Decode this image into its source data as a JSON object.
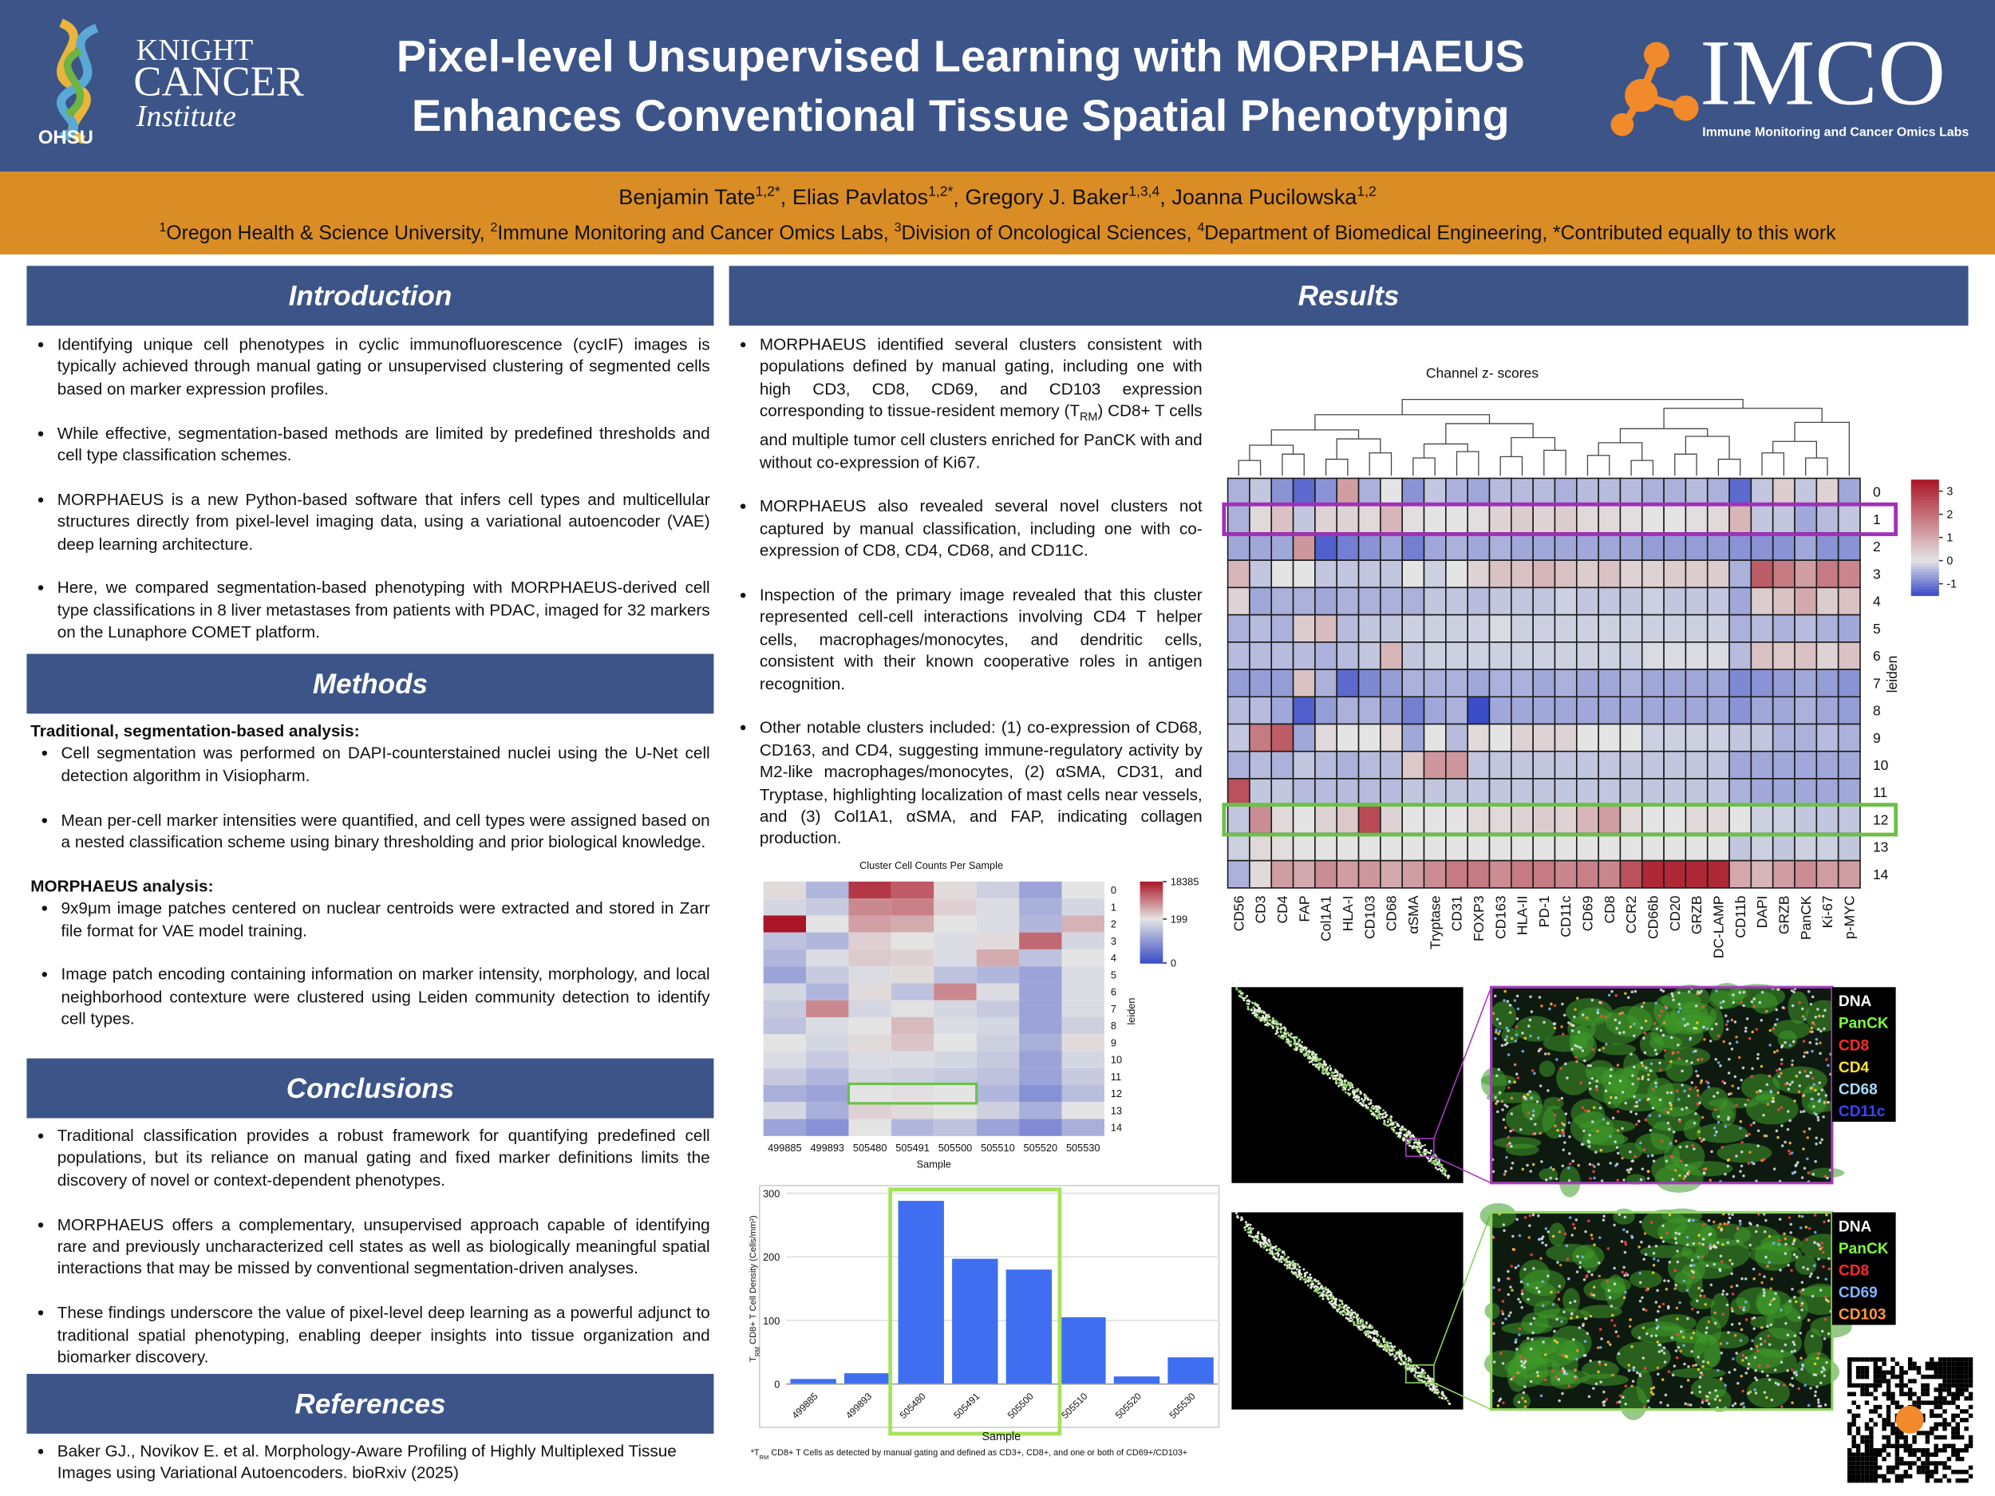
{
  "header": {
    "title": [
      "Pixel-level Unsupervised Learning with MORPHAEUS",
      "Enhances Conventional Tissue Spatial Phenotyping"
    ],
    "logo_left": {
      "line1": "KNIGHT",
      "line2": "CANCER",
      "line3": "Institute",
      "org": "OHSU"
    },
    "logo_right": {
      "name": "IMCO",
      "subtitle": "Immune Monitoring and Cancer Omics Labs"
    }
  },
  "authors": [
    [
      "Benjamin Tate",
      "1,2*"
    ],
    [
      ", Elias Pavlatos",
      "1,2*"
    ],
    [
      ", Gregory J. Baker",
      "1,3,4"
    ],
    [
      ", Joanna Pucilowska",
      "1,2"
    ]
  ],
  "affiliations": [
    {
      "sup": "1",
      "text": "Oregon Health & Science University, "
    },
    {
      "sup": "2",
      "text": "Immune Monitoring and Cancer Omics Labs, "
    },
    {
      "sup": "3",
      "text": "Division of Oncological Sciences, "
    },
    {
      "sup": "4",
      "text": "Department of Biomedical Engineering, "
    },
    {
      "text": "*Contributed equally to this work"
    }
  ],
  "introduction": {
    "heading": "Introduction",
    "bullets": [
      "Identifying unique cell phenotypes in cyclic immunofluorescence (cycIF) images is typically achieved through manual gating or unsupervised clustering of segmented cells based on marker expression profiles.",
      "While effective, segmentation-based methods are limited by predefined thresholds and cell type classification schemes.",
      "MORPHAEUS is a new Python-based software that infers cell types and multicellular structures directly from pixel-level imaging data, using a variational autoencoder (VAE) deep learning architecture.",
      "Here, we compared segmentation-based phenotyping with MORPHAEUS-derived cell type classifications in 8 liver metastases from patients with PDAC, imaged for 32 markers on the Lunaphore COMET platform."
    ]
  },
  "methods": {
    "heading": "Methods",
    "groups": [
      {
        "title": "Traditional, segmentation-based analysis:",
        "bullets": [
          "Cell segmentation was performed on DAPI-counterstained nuclei using the U-Net cell detection algorithm in Visiopharm.",
          "Mean per-cell marker intensities were quantified, and cell types were assigned based on a nested classification scheme using binary thresholding and prior biological knowledge."
        ]
      },
      {
        "title": "MORPHAEUS analysis:",
        "bullets": [
          "9x9μm image patches centered on nuclear centroids were extracted and stored in Zarr file format for VAE model training.",
          "Image patch encoding containing information on marker intensity, morphology, and local neighborhood contexture were clustered using Leiden community detection to identify cell types."
        ]
      }
    ]
  },
  "conclusions": {
    "heading": "Conclusions",
    "bullets": [
      "Traditional classification provides a robust framework for quantifying predefined cell populations, but its reliance on manual gating and fixed marker definitions limits the discovery of novel or context-dependent phenotypes.",
      "MORPHAEUS offers a complementary, unsupervised approach capable of identifying rare and previously uncharacterized cell states as well as biologically meaningful spatial interactions that may be missed by conventional segmentation-driven analyses.",
      "These findings underscore the value of pixel-level deep learning as a powerful adjunct to traditional spatial phenotyping, enabling deeper insights into tissue organization and biomarker discovery."
    ]
  },
  "references": {
    "heading": "References",
    "items": [
      "Baker GJ., Novikov E. et al. Morphology-Aware Profiling of Highly Multiplexed Tissue Images using Variational Autoencoders. bioRxiv (2025)"
    ]
  },
  "results": {
    "heading": "Results",
    "bullets": [
      [
        "MORPHAEUS identified several clusters consistent with populations defined by manual gating, including one with high CD3, CD8, CD69, and CD103 expression corresponding to tissue-resident memory (T",
        {
          "sub": "RM"
        },
        ") CD8+ T cells and multiple tumor cell clusters enriched for PanCK with and without co-expression of Ki67."
      ],
      "MORPHAEUS also revealed several novel clusters not captured by manual classification, including one with co-expression of CD8, CD4, CD68, and CD11C.",
      "Inspection of the primary image revealed that this cluster represented cell-cell interactions involving CD4 T helper cells, macrophages/monocytes, and dendritic cells, consistent with their known cooperative roles in antigen recognition.",
      "Other notable clusters included: (1) co-expression of CD68, CD163, and CD4, suggesting immune-regulatory activity by M2-like macrophages/monocytes, (2) αSMA, CD31, and Tryptase, highlighting localization of mast cells near vessels, and (3) Col1A1, αSMA, and FAP, indicating collagen production."
    ],
    "heatmap": {
      "type": "heatmap",
      "title": "Channel z- scores",
      "row_axis_label": "leiden",
      "scale": "linear",
      "clim": [
        -1.5,
        3.5
      ],
      "cticks": [
        3,
        2,
        1,
        0,
        -1
      ],
      "columns": [
        "CD56",
        "CD3",
        "CD4",
        "FAP",
        "Col1A1",
        "HLA-I",
        "CD103",
        "CD68",
        "αSMA",
        "Tryptase",
        "CD31",
        "FOXP3",
        "CD163",
        "HLA-II",
        "PD-1",
        "CD11c",
        "CD69",
        "CD8",
        "CCR2",
        "CD66b",
        "CD20",
        "GRZB",
        "DC-LAMP",
        "CD11b",
        "DAPI",
        "GRZB",
        "PanCK",
        "Ki-67",
        "p-MYC"
      ],
      "rows": [
        0,
        1,
        2,
        3,
        4,
        5,
        6,
        7,
        8,
        9,
        10,
        11,
        12,
        13,
        14
      ],
      "values": [
        [
          -0.5,
          -0.3,
          -0.8,
          -1.2,
          -0.8,
          1.2,
          -0.5,
          0,
          -0.8,
          -0.3,
          -0.5,
          -0.6,
          -0.4,
          -0.4,
          -0.4,
          -0.5,
          -0.4,
          -0.4,
          -0.4,
          -0.5,
          -0.5,
          -0.4,
          -0.5,
          -1.2,
          -0.3,
          0.4,
          -0.3,
          0.3,
          -0.6
        ],
        [
          -0.5,
          0.2,
          0.6,
          -0.3,
          0.3,
          0.3,
          0.2,
          0.8,
          0.1,
          0,
          0,
          0.1,
          0.3,
          0.4,
          0.3,
          0.4,
          0.2,
          0.2,
          0.1,
          0,
          0,
          0.1,
          0.2,
          0.8,
          -0.3,
          -0.3,
          -0.6,
          -0.4,
          -0.3
        ],
        [
          -0.6,
          -0.6,
          -0.6,
          1.3,
          -1.3,
          -1,
          -0.8,
          -0.6,
          -1,
          -0.6,
          -0.5,
          -0.6,
          -0.5,
          -0.6,
          -0.6,
          -0.6,
          -0.6,
          -0.6,
          -0.6,
          -0.7,
          -0.7,
          -0.7,
          -0.7,
          -0.8,
          -0.8,
          -0.8,
          -0.6,
          -0.8,
          -0.8
        ],
        [
          0.8,
          -0.3,
          0,
          0,
          -0.3,
          -0.3,
          -0.3,
          -0.3,
          0,
          -0.2,
          0,
          0.3,
          0.6,
          0.6,
          0.8,
          0.6,
          0.4,
          0.6,
          0.3,
          0.3,
          0.4,
          0.4,
          0.4,
          -0.5,
          2.3,
          1.8,
          1.2,
          1.8,
          1.6
        ],
        [
          0.3,
          -0.6,
          -0.5,
          -0.5,
          -0.6,
          -0.5,
          -0.5,
          -0.5,
          -0.5,
          -0.3,
          -0.3,
          -0.4,
          -0.3,
          -0.3,
          -0.3,
          -0.2,
          -0.3,
          -0.3,
          -0.3,
          -0.2,
          -0.3,
          -0.3,
          -0.3,
          -0.6,
          0.4,
          0.6,
          1,
          0.4,
          0.6
        ],
        [
          -0.5,
          -0.4,
          -0.5,
          0.4,
          0.7,
          -0.4,
          -0.3,
          -0.3,
          -0.2,
          -0.2,
          -0.2,
          -0.2,
          -0.1,
          -0.2,
          -0.2,
          -0.2,
          -0.2,
          -0.2,
          -0.2,
          -0.2,
          -0.2,
          -0.2,
          -0.2,
          -0.5,
          -0.4,
          -0.5,
          -0.4,
          -0.5,
          -0.6
        ],
        [
          -0.4,
          -0.4,
          -0.4,
          -0.4,
          -0.5,
          -0.4,
          -0.3,
          0.8,
          -0.3,
          -0.2,
          -0.2,
          -0.2,
          -0.2,
          -0.2,
          -0.2,
          -0.2,
          -0.2,
          -0.2,
          -0.2,
          -0.1,
          -0.1,
          -0.1,
          -0.1,
          -0.4,
          0.6,
          0.5,
          0.6,
          0.3,
          0.6
        ],
        [
          -0.7,
          -0.7,
          -0.7,
          0.6,
          -0.5,
          -1.2,
          -0.9,
          -0.7,
          -0.5,
          -0.5,
          -0.5,
          -0.6,
          -0.5,
          -0.5,
          -0.6,
          -0.5,
          -0.6,
          -0.6,
          -0.5,
          -0.6,
          -0.6,
          -0.6,
          -0.6,
          -0.9,
          -0.8,
          -0.7,
          -0.6,
          -0.7,
          -0.8
        ],
        [
          -0.4,
          -0.4,
          -0.6,
          -1.3,
          -0.7,
          -0.5,
          -0.5,
          -0.7,
          -1,
          -0.6,
          -0.5,
          -1.5,
          -0.6,
          -0.6,
          -0.6,
          -0.6,
          -0.6,
          -0.6,
          -0.6,
          -0.6,
          -0.6,
          -0.6,
          -0.6,
          -0.8,
          -0.6,
          -0.6,
          -0.5,
          -0.6,
          -0.7
        ],
        [
          -0.3,
          1.8,
          2.3,
          -0.6,
          0.2,
          0,
          0,
          0.2,
          -0.6,
          0,
          -0.4,
          0.2,
          0,
          0.3,
          0.3,
          0.3,
          0,
          0,
          0,
          -0.2,
          -0.2,
          -0.2,
          -0.2,
          -0.3,
          -0.3,
          -0.5,
          -0.5,
          -0.4,
          -0.5
        ],
        [
          -0.5,
          -0.4,
          -0.5,
          -0.3,
          -0.4,
          -0.5,
          -0.4,
          -0.4,
          0.5,
          1.3,
          1.3,
          -0.3,
          -0.3,
          -0.3,
          -0.3,
          -0.3,
          -0.3,
          -0.3,
          -0.3,
          -0.3,
          -0.3,
          -0.3,
          -0.3,
          -0.6,
          -0.6,
          -0.6,
          -0.6,
          -0.6,
          -0.6
        ],
        [
          2.5,
          -0.3,
          -0.3,
          -0.4,
          -0.4,
          -0.4,
          -0.4,
          -0.4,
          -0.3,
          -0.3,
          -0.3,
          -0.3,
          -0.3,
          -0.3,
          -0.3,
          -0.3,
          -0.3,
          -0.3,
          -0.3,
          -0.3,
          -0.3,
          -0.3,
          -0.3,
          -0.5,
          -0.6,
          -0.6,
          -0.6,
          -0.6,
          -0.6
        ],
        [
          -0.3,
          1.5,
          0.2,
          0,
          0.3,
          0.5,
          2.6,
          0.3,
          0,
          0,
          0,
          0.2,
          0.2,
          0.3,
          0.4,
          0.3,
          0.8,
          1.2,
          0.2,
          0,
          0,
          0.2,
          0.2,
          0,
          -0.2,
          -0.2,
          -0.3,
          -0.3,
          -0.3
        ],
        [
          -0.2,
          0.2,
          0.1,
          0,
          0,
          0,
          0,
          0,
          0,
          0,
          0,
          0,
          0,
          0,
          0,
          0,
          0,
          0,
          0,
          0,
          0,
          0,
          0,
          -0.3,
          -0.2,
          -0.3,
          -0.2,
          -0.2,
          -0.3
        ],
        [
          -0.5,
          0.2,
          1.2,
          1,
          1.5,
          1.2,
          1.3,
          1,
          1.2,
          1.5,
          1.8,
          1.8,
          1.5,
          1.8,
          1.8,
          1.6,
          1.7,
          1.6,
          2.5,
          3.2,
          3.2,
          3.2,
          3.2,
          1,
          0.8,
          1.2,
          1.5,
          1.2,
          1.2
        ]
      ],
      "highlights": [
        {
          "row": 1,
          "color": "#a12fb8"
        },
        {
          "row": 12,
          "color": "#6cc04a"
        }
      ]
    },
    "counts": {
      "type": "heatmap",
      "title": "Cluster Cell Counts Per Sample",
      "row_axis_label": "leiden",
      "x_label": "Sample",
      "scale": "log",
      "clim": [
        0,
        18385
      ],
      "cticks": [
        18385,
        199,
        0
      ],
      "columns": [
        "499885",
        "499893",
        "505480",
        "505491",
        "505500",
        "505510",
        "505520",
        "505530"
      ],
      "rows": [
        0,
        1,
        2,
        3,
        4,
        5,
        6,
        7,
        8,
        9,
        10,
        11,
        12,
        13,
        14
      ],
      "values": [
        [
          250,
          40,
          9000,
          4000,
          250,
          100,
          20,
          200
        ],
        [
          120,
          80,
          1500,
          1800,
          300,
          150,
          30,
          120
        ],
        [
          18385,
          200,
          900,
          700,
          200,
          150,
          40,
          600
        ],
        [
          60,
          40,
          300,
          200,
          150,
          250,
          3000,
          120
        ],
        [
          40,
          150,
          350,
          300,
          150,
          700,
          60,
          200
        ],
        [
          20,
          80,
          150,
          250,
          60,
          40,
          20,
          150
        ],
        [
          120,
          40,
          250,
          60,
          1500,
          150,
          20,
          150
        ],
        [
          80,
          1500,
          120,
          180,
          120,
          80,
          20,
          150
        ],
        [
          60,
          150,
          200,
          500,
          150,
          120,
          20,
          100
        ],
        [
          200,
          120,
          250,
          400,
          200,
          100,
          30,
          250
        ],
        [
          150,
          80,
          150,
          150,
          120,
          80,
          20,
          120
        ],
        [
          80,
          40,
          120,
          100,
          80,
          60,
          20,
          80
        ],
        [
          30,
          20,
          200,
          220,
          200,
          40,
          10,
          50
        ],
        [
          120,
          30,
          300,
          250,
          200,
          100,
          30,
          200
        ],
        [
          20,
          10,
          200,
          40,
          60,
          20,
          8,
          30
        ]
      ],
      "highlights": [
        {
          "row": 12,
          "cols": [
            2,
            4
          ],
          "color": "#6cc04a"
        }
      ]
    },
    "bar": {
      "type": "bar",
      "categories": [
        "499885",
        "499893",
        "505480",
        "505491",
        "505500",
        "505510",
        "505520",
        "505530"
      ],
      "values": [
        8,
        17,
        288,
        197,
        180,
        105,
        12,
        42
      ],
      "color": "#3f6ff0",
      "ylim": [
        0,
        300
      ],
      "yticks": [
        0,
        100,
        200,
        300
      ],
      "grid": true,
      "y_label": [
        "T",
        {
          "sub": "RM"
        },
        " CD8+ T Cell Density (Cells/mm²)"
      ],
      "x_label": "Sample",
      "highlight": {
        "cols": [
          2,
          4
        ],
        "color": "#a6e25c"
      },
      "footnote": [
        "*T",
        {
          "sub": "RM"
        },
        " CD8+ T Cells as detected by manual gating and defined as CD3+, CD8+, and one or both of CD69+/CD103+"
      ]
    },
    "images": [
      {
        "legend": [
          "DNA",
          "PanCK",
          "CD8",
          "CD4",
          "CD68",
          "CD11c"
        ],
        "colors": [
          "#ffffff",
          "#7dfc3c",
          "#ff2a2a",
          "#ffe23a",
          "#a8dcff",
          "#3a44ff"
        ]
      },
      {
        "legend": [
          "DNA",
          "PanCK",
          "CD8",
          "CD69",
          "CD103"
        ],
        "colors": [
          "#ffffff",
          "#7dfc3c",
          "#ff2a2a",
          "#7fb4ff",
          "#ff9a3c"
        ]
      }
    ]
  }
}
